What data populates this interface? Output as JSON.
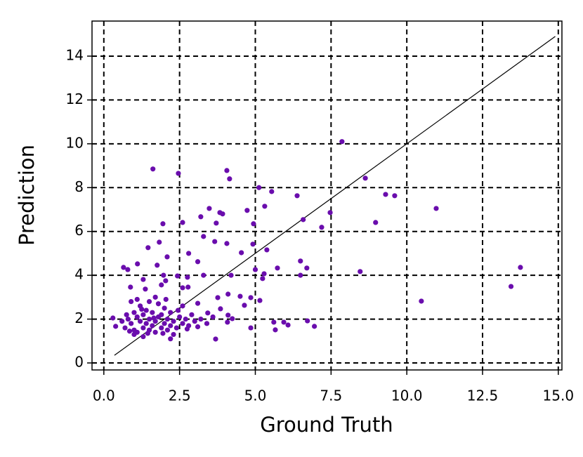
{
  "chart_data": {
    "type": "scatter",
    "xlabel": "Ground Truth",
    "ylabel": "Prediction",
    "xlim": [
      -0.39,
      15.12
    ],
    "ylim": [
      -0.32,
      15.6
    ],
    "xticks": [
      {
        "value": 0,
        "label": "0.0"
      },
      2.5,
      {
        "value": 5,
        "label": "5.0"
      },
      7.5,
      {
        "value": 10,
        "label": "10.0"
      },
      12.5,
      {
        "value": 15,
        "label": "15.0"
      }
    ],
    "yticks": [
      0,
      2,
      4,
      6,
      8,
      10,
      12,
      14
    ],
    "grid": true,
    "reference_line": {
      "x": [
        0.35,
        14.9
      ],
      "y": [
        0.35,
        14.9
      ],
      "color": "#000000"
    },
    "series": [
      {
        "color": "#6a0dad",
        "x": [
          7.86,
          1.62,
          2.46,
          4.06,
          4.15,
          5.12,
          5.54,
          6.38,
          8.63,
          9.3,
          9.6,
          10.97,
          7.47,
          3.48,
          3.83,
          3.92,
          5.31,
          4.73,
          3.71,
          3.2,
          1.95,
          2.6,
          6.58,
          8.97,
          7.19,
          4.94,
          3.29,
          3.66,
          4.06,
          1.46,
          1.83,
          2.8,
          4.54,
          4.92,
          5.38,
          2.09,
          3.1,
          6.49,
          0.65,
          0.79,
          1.11,
          1.76,
          6.7,
          5.73,
          13.75,
          5.0,
          8.46,
          0.88,
          1.3,
          1.97,
          2.04,
          2.43,
          2.6,
          2.76,
          3.29,
          4.2,
          5.29,
          5.24,
          6.49,
          1.37,
          1.9,
          2.78,
          13.44,
          10.48,
          4.1,
          3.76,
          4.5,
          4.85,
          5.15,
          3.1,
          4.64,
          4.85,
          3.69,
          5.61,
          5.66,
          5.94,
          6.08,
          6.72,
          6.95,
          4.08,
          4.1,
          4.24,
          3.43,
          3.85,
          0.3,
          0.39,
          0.7,
          0.8,
          0.9,
          1.0,
          1.0,
          1.1,
          1.1,
          1.2,
          1.2,
          1.3,
          1.3,
          1.4,
          1.4,
          1.5,
          1.5,
          1.6,
          1.6,
          1.7,
          1.7,
          1.8,
          1.8,
          1.9,
          1.9,
          2.0,
          2.0,
          2.1,
          2.1,
          2.2,
          2.2,
          2.3,
          2.4,
          2.5,
          2.6,
          2.7,
          2.8,
          2.9,
          3.0,
          3.2,
          0.9,
          1.1,
          1.5,
          0.6,
          1.0,
          1.3,
          2.3,
          2.2,
          3.4,
          3.6,
          2.6,
          1.7,
          0.75,
          1.25,
          1.65,
          2.05,
          2.45,
          0.85,
          1.45,
          1.95,
          2.75,
          3.1
        ],
        "values": [
          10.1,
          8.85,
          8.65,
          8.78,
          8.4,
          8.0,
          7.82,
          7.63,
          8.43,
          7.69,
          7.63,
          7.05,
          6.86,
          7.05,
          6.86,
          6.8,
          7.15,
          6.96,
          6.38,
          6.67,
          6.35,
          6.41,
          6.54,
          6.41,
          6.19,
          6.35,
          5.77,
          5.54,
          5.45,
          5.26,
          5.51,
          5.0,
          5.03,
          5.42,
          5.16,
          4.84,
          4.62,
          4.65,
          4.36,
          4.26,
          4.52,
          4.46,
          4.33,
          4.33,
          4.36,
          4.26,
          4.17,
          3.46,
          3.81,
          4.0,
          3.75,
          3.97,
          3.43,
          3.91,
          4.0,
          4.0,
          4.07,
          3.85,
          4.0,
          3.37,
          3.56,
          3.46,
          3.49,
          2.82,
          3.14,
          2.98,
          3.04,
          2.98,
          2.85,
          2.72,
          2.63,
          1.6,
          1.09,
          1.86,
          1.51,
          1.86,
          1.73,
          1.92,
          1.67,
          1.86,
          2.18,
          2.02,
          2.28,
          2.47,
          2.05,
          1.67,
          1.6,
          2.0,
          1.8,
          2.3,
          1.5,
          2.1,
          1.4,
          2.6,
          1.9,
          1.6,
          2.2,
          1.8,
          2.4,
          1.5,
          2.0,
          1.7,
          2.3,
          1.9,
          1.4,
          2.1,
          2.7,
          1.6,
          2.2,
          1.8,
          2.5,
          1.5,
          2.0,
          1.7,
          2.3,
          1.9,
          1.6,
          2.1,
          1.8,
          2.0,
          1.7,
          2.2,
          1.9,
          2.0,
          2.8,
          2.9,
          2.8,
          1.9,
          1.3,
          1.2,
          1.3,
          1.1,
          1.8,
          2.1,
          2.6,
          3.0,
          2.2,
          2.45,
          2.05,
          2.9,
          2.4,
          1.45,
          1.35,
          1.35,
          1.55,
          1.65
        ]
      }
    ]
  }
}
